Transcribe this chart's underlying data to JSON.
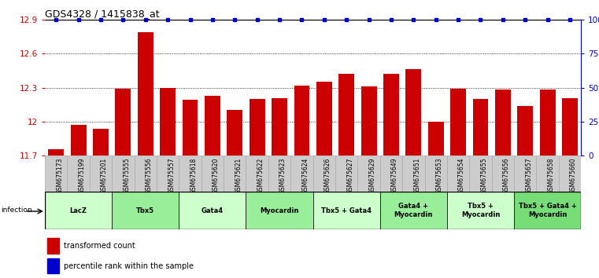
{
  "title": "GDS4328 / 1415838_at",
  "samples": [
    "GSM675173",
    "GSM675199",
    "GSM675201",
    "GSM675555",
    "GSM675556",
    "GSM675557",
    "GSM675618",
    "GSM675620",
    "GSM675621",
    "GSM675622",
    "GSM675623",
    "GSM675624",
    "GSM675626",
    "GSM675627",
    "GSM675629",
    "GSM675649",
    "GSM675651",
    "GSM675653",
    "GSM675654",
    "GSM675655",
    "GSM675656",
    "GSM675657",
    "GSM675658",
    "GSM675660"
  ],
  "values": [
    11.76,
    11.97,
    11.94,
    12.29,
    12.79,
    12.3,
    12.19,
    12.23,
    12.1,
    12.2,
    12.21,
    12.32,
    12.35,
    12.42,
    12.31,
    12.42,
    12.46,
    12.0,
    12.29,
    12.2,
    12.28,
    12.14,
    12.28,
    12.21
  ],
  "bar_color": "#cc0000",
  "dot_color": "#0000cc",
  "ylim": [
    11.7,
    12.9
  ],
  "yticks": [
    11.7,
    12.0,
    12.3,
    12.6,
    12.9
  ],
  "ytick_labels": [
    "11.7",
    "12",
    "12.3",
    "12.6",
    "12.9"
  ],
  "right_yticks": [
    0,
    25,
    50,
    75,
    100
  ],
  "right_ytick_labels": [
    "0",
    "25",
    "50",
    "75",
    "100%"
  ],
  "groups": [
    {
      "label": "LacZ",
      "start": 0,
      "end": 3,
      "color": "#ccffcc"
    },
    {
      "label": "Tbx5",
      "start": 3,
      "end": 6,
      "color": "#99ee99"
    },
    {
      "label": "Gata4",
      "start": 6,
      "end": 9,
      "color": "#ccffcc"
    },
    {
      "label": "Myocardin",
      "start": 9,
      "end": 12,
      "color": "#99ee99"
    },
    {
      "label": "Tbx5 + Gata4",
      "start": 12,
      "end": 15,
      "color": "#ccffcc"
    },
    {
      "label": "Gata4 +\nMyocardin",
      "start": 15,
      "end": 18,
      "color": "#99ee99"
    },
    {
      "label": "Tbx5 +\nMyocardin",
      "start": 18,
      "end": 21,
      "color": "#ccffcc"
    },
    {
      "label": "Tbx5 + Gata4 +\nMyocardin",
      "start": 21,
      "end": 24,
      "color": "#77dd77"
    }
  ],
  "infection_label": "infection",
  "legend_items": [
    {
      "label": "transformed count",
      "color": "#cc0000"
    },
    {
      "label": "percentile rank within the sample",
      "color": "#0000cc"
    }
  ],
  "tick_bg_color": "#cccccc",
  "grid_color": "#888888",
  "top_line_color": "#000000"
}
